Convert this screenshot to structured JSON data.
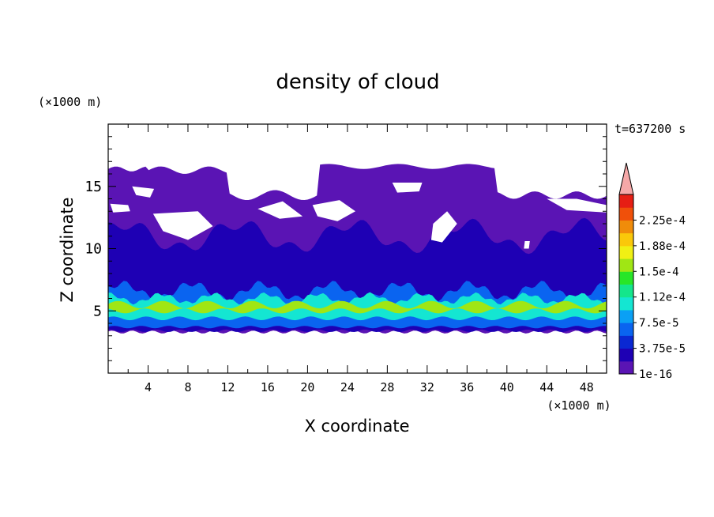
{
  "chart_data": {
    "type": "heatmap",
    "title": "density of cloud",
    "xlabel": "X coordinate",
    "ylabel": "Z coordinate",
    "x_unit": "(×1000 m)",
    "y_unit": "(×1000 m)",
    "time_label": "t=637200 s",
    "xlim": [
      0,
      50
    ],
    "ylim": [
      0,
      20
    ],
    "x_ticks": [
      "4",
      "8",
      "12",
      "16",
      "20",
      "24",
      "28",
      "32",
      "36",
      "40",
      "44",
      "48"
    ],
    "y_ticks": [
      "5",
      "10",
      "15"
    ],
    "colorbar": {
      "labels": [
        "1e-16",
        "3.75e-5",
        "7.5e-5",
        "1.12e-4",
        "1.5e-4",
        "1.88e-4",
        "2.25e-4"
      ],
      "colors": [
        "#5a14b4",
        "#1e00b4",
        "#0a28d2",
        "#0a64f0",
        "#0aa0f5",
        "#14e6d2",
        "#14e68c",
        "#28e628",
        "#a0e614",
        "#f0f014",
        "#fac80a",
        "#f08c0a",
        "#f0500a",
        "#e61e14"
      ],
      "extend_color": "#f5a8a8"
    },
    "cloud_layers": [
      {
        "level": "1e-16",
        "color": "#5a14b4",
        "z_range": [
          3.5,
          16.5
        ]
      },
      {
        "level": "3.75e-5",
        "color": "#1e00b4",
        "z_range": [
          3.5,
          12
        ]
      },
      {
        "level": "7.5e-5",
        "color": "#0a64f0",
        "z_range": [
          3.8,
          7
        ]
      },
      {
        "level": "1.12e-4",
        "color": "#14e6d2",
        "z_range": [
          4.5,
          6.5
        ]
      },
      {
        "level": "1.5e-4",
        "color": "#a0e614",
        "z_range": [
          5.0,
          6.0
        ]
      }
    ]
  }
}
